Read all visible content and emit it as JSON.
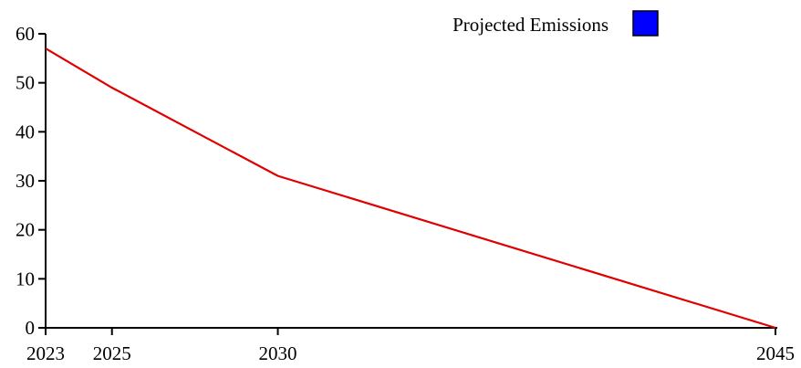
{
  "chart_data": {
    "type": "line",
    "title": "",
    "xlabel": "",
    "ylabel": "",
    "x": [
      2023,
      2025,
      2030,
      2045
    ],
    "series": [
      {
        "name": "Projected Emissions",
        "values": [
          57,
          49,
          31,
          0
        ],
        "line_color": "#e00000",
        "legend_swatch_color": "#0000ff"
      }
    ],
    "x_ticks": [
      "2023",
      "2025",
      "2030",
      "2045"
    ],
    "y_ticks": [
      "0",
      "10",
      "20",
      "30",
      "40",
      "50",
      "60"
    ],
    "xlim": [
      2023,
      2045
    ],
    "ylim": [
      0,
      60
    ],
    "grid": false,
    "legend": {
      "position": "top-right",
      "label": "Projected Emissions",
      "swatch_color": "#0000ff"
    }
  }
}
